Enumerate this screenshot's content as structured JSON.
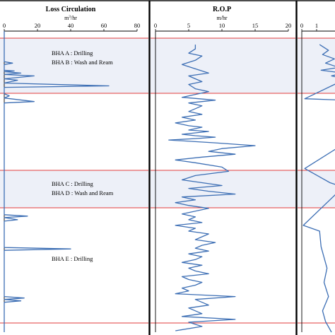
{
  "chart_data": [
    {
      "type": "line",
      "title": "Loss Circulation",
      "unit_base": "m",
      "unit_sup": "3",
      "unit_rest": "/hr",
      "xlim": [
        0,
        80
      ],
      "ticks": [
        "0",
        "20",
        "40",
        "60",
        "80"
      ],
      "y_direction": "depth increases downward (unlabelled)",
      "series": [
        {
          "x": [
            0,
            0,
            5,
            0,
            0,
            6,
            0,
            10,
            0,
            18,
            0,
            8,
            0,
            63,
            0,
            0,
            3,
            0,
            18,
            0,
            0,
            0,
            0,
            0,
            14,
            0,
            8,
            0,
            0,
            0,
            40,
            0,
            0,
            0,
            0,
            0,
            0,
            0,
            12,
            0,
            10,
            0,
            0
          ],
          "y": [
            37,
            80,
            82,
            84,
            92,
            93,
            94,
            96,
            98,
            100,
            104,
            106,
            110,
            114,
            116,
            125,
            128,
            131,
            136,
            138,
            180,
            240,
            260,
            295,
            297,
            299,
            302,
            304,
            330,
            341,
            343,
            345,
            380,
            400,
            404,
            406,
            408,
            410,
            412,
            414,
            416,
            418,
            460
          ]
        }
      ],
      "bha_labels": [
        "BHA  A : Drilling",
        "BHA  B : Wash and Ream",
        "BHA  C : Drilling",
        "BHA  D : Wash and Ream",
        "BHA  E : Drilling"
      ]
    },
    {
      "type": "line",
      "title": "R.O.P",
      "unit_base": "m/hr",
      "xlim": [
        0,
        20
      ],
      "ticks": [
        "0",
        "5",
        "10",
        "15",
        "20"
      ],
      "series": [
        {
          "x": [
            6,
            6,
            5,
            7,
            6,
            4,
            6,
            8,
            5,
            6,
            7,
            5,
            6,
            8,
            6,
            4,
            9,
            5,
            7,
            6,
            5,
            7,
            4,
            6,
            3,
            5,
            7,
            5,
            8,
            6,
            4,
            6,
            9,
            6,
            2,
            9,
            15,
            10,
            8,
            12,
            7,
            3,
            6,
            10,
            11,
            6,
            4,
            7,
            10,
            5,
            8,
            12,
            4,
            6,
            3,
            5,
            8,
            6,
            4,
            6,
            5,
            7,
            3,
            6,
            5,
            8,
            7,
            6,
            9,
            7,
            6,
            8,
            5,
            7,
            6,
            4,
            7,
            5,
            6,
            8,
            4,
            5,
            7,
            6,
            4,
            5,
            3,
            12,
            6,
            7,
            8,
            5,
            6,
            7,
            4,
            12,
            5,
            7,
            3
          ],
          "y": [
            56,
            62,
            68,
            72,
            78,
            84,
            90,
            96,
            100,
            104,
            108,
            112,
            118,
            122,
            126,
            130,
            134,
            138,
            142,
            146,
            150,
            154,
            158,
            162,
            166,
            170,
            172,
            176,
            178,
            180,
            182,
            184,
            186,
            188,
            190,
            194,
            198,
            202,
            206,
            210,
            214,
            218,
            222,
            228,
            234,
            240,
            246,
            250,
            254,
            258,
            262,
            266,
            270,
            274,
            278,
            282,
            286,
            290,
            294,
            298,
            302,
            306,
            310,
            314,
            318,
            322,
            326,
            330,
            334,
            338,
            342,
            346,
            350,
            354,
            358,
            362,
            366,
            370,
            374,
            378,
            382,
            386,
            390,
            394,
            398,
            402,
            406,
            410,
            414,
            418,
            422,
            426,
            430,
            434,
            438,
            442,
            446,
            452,
            458
          ]
        }
      ]
    },
    {
      "type": "line",
      "title": "",
      "xlim": [
        0,
        3
      ],
      "ticks": [
        "0",
        "1"
      ],
      "series": [
        {
          "x": [
            1.2,
            1.8,
            1.4,
            2.2,
            1.6,
            2.5,
            1.3,
            2.8,
            2.0,
            2.9,
            2.4,
            0.2,
            2.8,
            2.4,
            2.8,
            0.2,
            1.9,
            2.8,
            0.1,
            1.2,
            1.3,
            1.7,
            1.5,
            1.8,
            1.4,
            1.6,
            2.0
          ],
          "y": [
            56,
            64,
            70,
            76,
            82,
            88,
            92,
            96,
            100,
            104,
            110,
            132,
            134,
            140,
            196,
            230,
            250,
            256,
            310,
            318,
            340,
            370,
            390,
            410,
            430,
            445,
            460
          ]
        }
      ]
    }
  ]
}
